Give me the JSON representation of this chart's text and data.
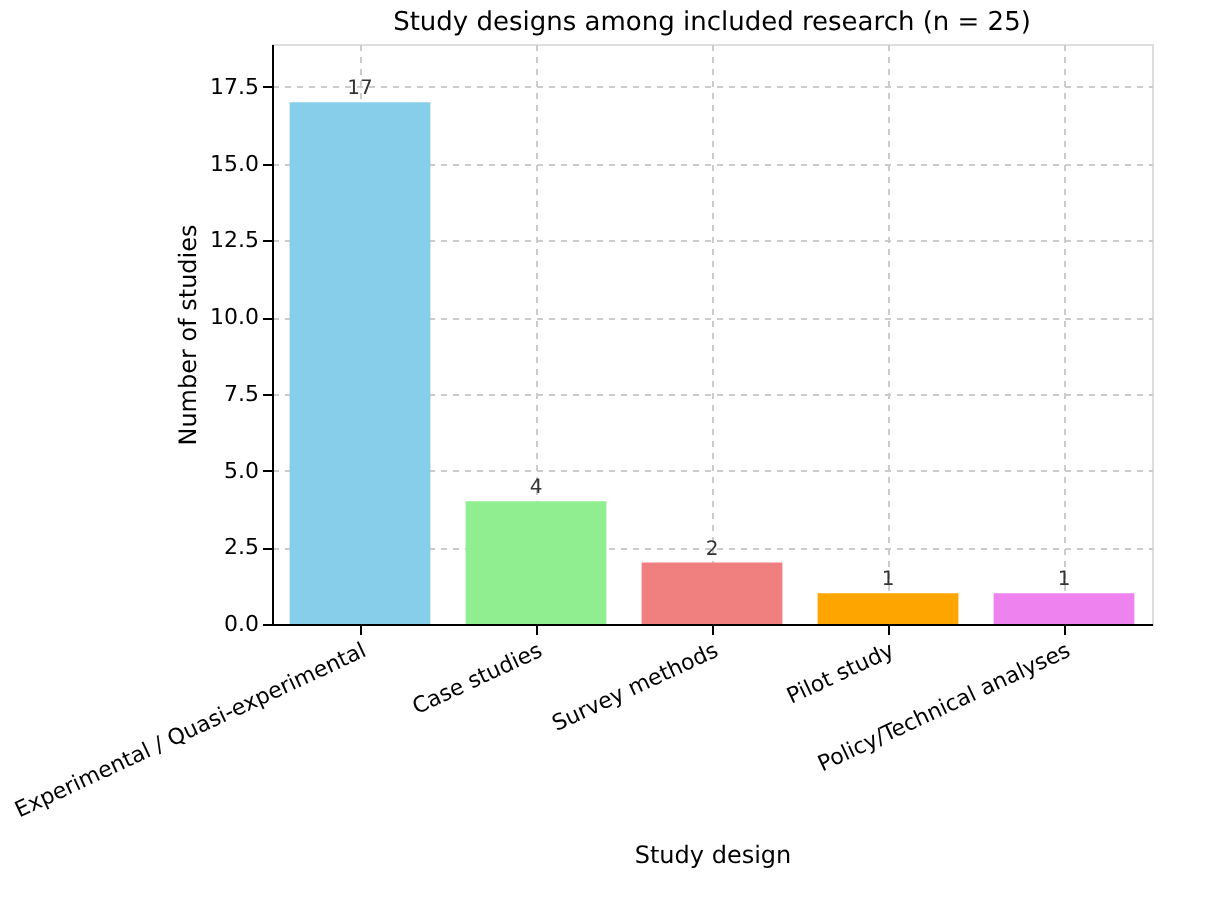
{
  "chart_data": {
    "type": "bar",
    "title": "Study designs among included research (n = 25)",
    "xlabel": "Study design",
    "ylabel": "Number of studies",
    "categories": [
      "Experimental / Quasi-experimental",
      "Case studies",
      "Survey methods",
      "Pilot study",
      "Policy/Technical analyses"
    ],
    "values": [
      17,
      4,
      2,
      1,
      1
    ],
    "colors": [
      "#87ceeb",
      "#90ee90",
      "#f08080",
      "#ffa500",
      "#ee82ee"
    ],
    "ylim": [
      0,
      18.9
    ],
    "yticks": [
      {
        "value": 0,
        "label": "0.0"
      },
      2.5,
      {
        "value": 5,
        "label": "5.0"
      },
      7.5,
      {
        "value": 10,
        "label": "10.0"
      },
      12.5,
      {
        "value": 15,
        "label": "15.0"
      },
      17.5
    ],
    "grid": true,
    "data_labels": true
  }
}
